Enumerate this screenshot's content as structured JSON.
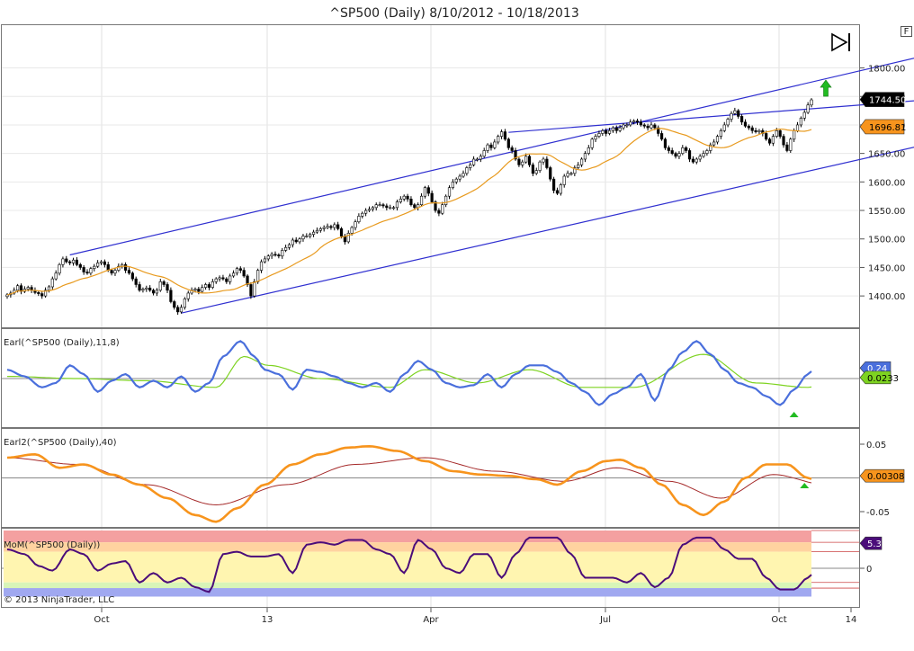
{
  "title": "^SP500 (Daily)  8/10/2012 - 10/18/2013",
  "corner_label": "F",
  "copyright": "© 2013 NinjaTrader, LLC",
  "colors": {
    "up_candle": "#ffffff",
    "down_candle": "#000000",
    "ma": "#e89a1e",
    "channel": "#3030d0",
    "earl_fast": "#4a6fdc",
    "earl_slow": "#7ed321",
    "earl2_fast": "#f7941d",
    "earl2_slow": "#a52a2a",
    "mom": "#4b0d7a",
    "last_price_badge": "#000000",
    "ma_badge": "#f7941d",
    "arrow_up": "#22bb22",
    "zone_red": "#f4a0a0",
    "zone_orange": "#ffd3a0",
    "zone_yellow": "#fff5b0",
    "zone_green": "#d8f5b8",
    "zone_blue": "#a0a8f0"
  },
  "chart_data": [
    {
      "type": "candlestick",
      "name": "price",
      "title": "^SP500 (Daily)  8/10/2012 - 10/18/2013",
      "x_range": [
        "2012-08-10",
        "2013-10-18"
      ],
      "x_ticks": [
        "Oct",
        "13",
        "Apr",
        "Jul",
        "Oct",
        "14"
      ],
      "y_ticks": [
        "1800.00",
        "1750.00",
        "1700.00",
        "1650.00",
        "1600.00",
        "1550.00",
        "1500.00",
        "1450.00",
        "1400.00"
      ],
      "ylim": [
        1345,
        1875
      ],
      "last_price": "1744.50",
      "ma_value": "1696.81",
      "closes": [
        1402,
        1405,
        1410,
        1418,
        1408,
        1412,
        1415,
        1410,
        1406,
        1404,
        1400,
        1410,
        1416,
        1430,
        1440,
        1455,
        1465,
        1460,
        1458,
        1463,
        1455,
        1450,
        1442,
        1440,
        1448,
        1452,
        1458,
        1460,
        1455,
        1445,
        1440,
        1445,
        1452,
        1455,
        1445,
        1440,
        1430,
        1420,
        1410,
        1412,
        1414,
        1410,
        1405,
        1410,
        1425,
        1420,
        1410,
        1390,
        1380,
        1372,
        1380,
        1395,
        1405,
        1410,
        1412,
        1408,
        1415,
        1420,
        1415,
        1425,
        1430,
        1432,
        1430,
        1425,
        1435,
        1440,
        1448,
        1445,
        1435,
        1420,
        1400,
        1425,
        1445,
        1460,
        1465,
        1470,
        1473,
        1472,
        1470,
        1480,
        1485,
        1490,
        1498,
        1495,
        1500,
        1505,
        1505,
        1508,
        1512,
        1515,
        1518,
        1520,
        1522,
        1520,
        1525,
        1518,
        1505,
        1495,
        1510,
        1520,
        1530,
        1540,
        1545,
        1550,
        1552,
        1555,
        1560,
        1560,
        1558,
        1555,
        1555,
        1555,
        1565,
        1570,
        1575,
        1570,
        1560,
        1555,
        1560,
        1575,
        1590,
        1580,
        1565,
        1550,
        1545,
        1560,
        1575,
        1590,
        1600,
        1605,
        1610,
        1615,
        1625,
        1630,
        1640,
        1640,
        1645,
        1655,
        1665,
        1660,
        1670,
        1680,
        1688,
        1675,
        1660,
        1655,
        1640,
        1630,
        1635,
        1645,
        1630,
        1615,
        1620,
        1635,
        1640,
        1625,
        1605,
        1585,
        1580,
        1595,
        1610,
        1615,
        1615,
        1625,
        1630,
        1640,
        1650,
        1660,
        1675,
        1680,
        1685,
        1690,
        1685,
        1690,
        1695,
        1690,
        1695,
        1700,
        1700,
        1705,
        1707,
        1705,
        1700,
        1698,
        1695,
        1700,
        1695,
        1685,
        1675,
        1660,
        1655,
        1650,
        1645,
        1650,
        1660,
        1655,
        1640,
        1635,
        1640,
        1645,
        1650,
        1655,
        1665,
        1670,
        1680,
        1690,
        1700,
        1710,
        1720,
        1725,
        1715,
        1705,
        1698,
        1695,
        1690,
        1688,
        1690,
        1685,
        1675,
        1668,
        1680,
        1690,
        1680,
        1665,
        1655,
        1675,
        1690,
        1700,
        1712,
        1722,
        1735,
        1744
      ]
    },
    {
      "type": "line",
      "name": "earl",
      "label": "Earl(^SP500 (Daily),11,8)",
      "ylim": [
        -1,
        1
      ],
      "fast_value": "0.24",
      "slow_value": "0.0233",
      "fast_keys": [
        [
          0,
          0.2
        ],
        [
          5,
          0.05
        ],
        [
          10,
          -0.2
        ],
        [
          14,
          -0.1
        ],
        [
          18,
          0.3
        ],
        [
          22,
          0.1
        ],
        [
          26,
          -0.3
        ],
        [
          30,
          -0.05
        ],
        [
          34,
          0.1
        ],
        [
          38,
          -0.2
        ],
        [
          42,
          -0.05
        ],
        [
          46,
          -0.2
        ],
        [
          50,
          0.05
        ],
        [
          54,
          -0.3
        ],
        [
          58,
          -0.1
        ],
        [
          62,
          0.5
        ],
        [
          67,
          0.85
        ],
        [
          71,
          0.5
        ],
        [
          74,
          0.2
        ],
        [
          78,
          0.1
        ],
        [
          82,
          -0.25
        ],
        [
          86,
          0.2
        ],
        [
          90,
          0.15
        ],
        [
          94,
          0.05
        ],
        [
          98,
          -0.1
        ],
        [
          102,
          -0.2
        ],
        [
          106,
          -0.1
        ],
        [
          110,
          -0.3
        ],
        [
          114,
          0.1
        ],
        [
          118,
          0.4
        ],
        [
          122,
          0.2
        ],
        [
          126,
          -0.1
        ],
        [
          130,
          -0.2
        ],
        [
          134,
          -0.15
        ],
        [
          138,
          0.1
        ],
        [
          142,
          -0.2
        ],
        [
          146,
          0.1
        ],
        [
          150,
          0.3
        ],
        [
          154,
          0.3
        ],
        [
          158,
          0.15
        ],
        [
          162,
          -0.1
        ],
        [
          166,
          -0.3
        ],
        [
          170,
          -0.6
        ],
        [
          174,
          -0.35
        ],
        [
          178,
          -0.2
        ],
        [
          182,
          0.1
        ],
        [
          186,
          -0.5
        ],
        [
          190,
          0.2
        ],
        [
          194,
          0.6
        ],
        [
          198,
          0.85
        ],
        [
          202,
          0.55
        ],
        [
          206,
          0.2
        ],
        [
          210,
          -0.1
        ],
        [
          214,
          -0.2
        ],
        [
          218,
          -0.4
        ],
        [
          222,
          -0.6
        ],
        [
          226,
          -0.25
        ],
        [
          230,
          0.1
        ],
        [
          234,
          0.5
        ],
        [
          238,
          0.62
        ],
        [
          242,
          0.3
        ],
        [
          246,
          -0.3
        ],
        [
          250,
          -0.5
        ],
        [
          254,
          -0.2
        ],
        [
          258,
          0.48
        ]
      ],
      "slow_keys": [
        [
          0,
          0.05
        ],
        [
          20,
          0.0
        ],
        [
          40,
          -0.05
        ],
        [
          60,
          -0.2
        ],
        [
          68,
          0.5
        ],
        [
          75,
          0.3
        ],
        [
          90,
          0.0
        ],
        [
          110,
          -0.2
        ],
        [
          120,
          0.2
        ],
        [
          135,
          -0.1
        ],
        [
          150,
          0.2
        ],
        [
          165,
          -0.2
        ],
        [
          180,
          -0.2
        ],
        [
          200,
          0.55
        ],
        [
          215,
          -0.1
        ],
        [
          230,
          -0.2
        ],
        [
          245,
          0.4
        ],
        [
          252,
          -0.2
        ],
        [
          258,
          0.0233
        ]
      ]
    },
    {
      "type": "line",
      "name": "earl2",
      "label": "Earl2(^SP500 (Daily),40)",
      "y_ticks": [
        "0.05",
        "-0.05"
      ],
      "ylim": [
        -0.07,
        0.07
      ],
      "fast_value": "0.00308",
      "fast_keys": [
        [
          0,
          0.03
        ],
        [
          8,
          0.035
        ],
        [
          15,
          0.015
        ],
        [
          22,
          0.02
        ],
        [
          30,
          0.005
        ],
        [
          38,
          -0.01
        ],
        [
          46,
          -0.03
        ],
        [
          54,
          -0.055
        ],
        [
          60,
          -0.065
        ],
        [
          66,
          -0.045
        ],
        [
          74,
          -0.01
        ],
        [
          82,
          0.02
        ],
        [
          90,
          0.035
        ],
        [
          98,
          0.045
        ],
        [
          104,
          0.047
        ],
        [
          112,
          0.04
        ],
        [
          120,
          0.025
        ],
        [
          128,
          0.01
        ],
        [
          136,
          0.005
        ],
        [
          144,
          0.003
        ],
        [
          152,
          -0.002
        ],
        [
          158,
          -0.01
        ],
        [
          165,
          0.01
        ],
        [
          172,
          0.025
        ],
        [
          176,
          0.027
        ],
        [
          182,
          0.015
        ],
        [
          188,
          -0.01
        ],
        [
          194,
          -0.04
        ],
        [
          200,
          -0.055
        ],
        [
          206,
          -0.035
        ],
        [
          212,
          0.0
        ],
        [
          218,
          0.02
        ],
        [
          224,
          0.02
        ],
        [
          230,
          0.0
        ],
        [
          236,
          -0.02
        ],
        [
          240,
          -0.04
        ],
        [
          246,
          -0.02
        ],
        [
          250,
          0.01
        ],
        [
          254,
          0.005
        ],
        [
          258,
          0.00308
        ]
      ],
      "slow_keys": [
        [
          0,
          0.03
        ],
        [
          20,
          0.02
        ],
        [
          40,
          -0.01
        ],
        [
          60,
          -0.04
        ],
        [
          80,
          -0.01
        ],
        [
          100,
          0.02
        ],
        [
          120,
          0.03
        ],
        [
          140,
          0.01
        ],
        [
          160,
          -0.005
        ],
        [
          175,
          0.015
        ],
        [
          190,
          -0.005
        ],
        [
          205,
          -0.03
        ],
        [
          220,
          0.005
        ],
        [
          235,
          -0.01
        ],
        [
          250,
          0.0
        ],
        [
          258,
          0.00308
        ]
      ]
    },
    {
      "type": "line",
      "name": "mom",
      "label": "MoM(^SP500 (Daily))",
      "y_ticks": [
        "0"
      ],
      "ylim": [
        -8,
        8
      ],
      "last_value": "5.3",
      "keys": [
        [
          0,
          4
        ],
        [
          5,
          3
        ],
        [
          9,
          0.5
        ],
        [
          13,
          -0.5
        ],
        [
          18,
          4
        ],
        [
          22,
          3
        ],
        [
          26,
          -0.5
        ],
        [
          30,
          1
        ],
        [
          34,
          1.5
        ],
        [
          38,
          -3
        ],
        [
          42,
          -1
        ],
        [
          46,
          -3
        ],
        [
          50,
          -2
        ],
        [
          54,
          -4
        ],
        [
          58,
          -5
        ],
        [
          62,
          3
        ],
        [
          66,
          3.5
        ],
        [
          70,
          2.5
        ],
        [
          74,
          2.5
        ],
        [
          78,
          3
        ],
        [
          82,
          -1
        ],
        [
          86,
          5
        ],
        [
          90,
          5.5
        ],
        [
          94,
          5
        ],
        [
          98,
          6
        ],
        [
          102,
          6
        ],
        [
          106,
          4
        ],
        [
          110,
          3
        ],
        [
          114,
          -1
        ],
        [
          118,
          6
        ],
        [
          122,
          4
        ],
        [
          126,
          0
        ],
        [
          130,
          -1
        ],
        [
          134,
          3
        ],
        [
          138,
          3
        ],
        [
          142,
          -2
        ],
        [
          146,
          3
        ],
        [
          150,
          6.5
        ],
        [
          154,
          6.5
        ],
        [
          158,
          6.5
        ],
        [
          162,
          3
        ],
        [
          166,
          -2
        ],
        [
          170,
          -2
        ],
        [
          174,
          -2
        ],
        [
          178,
          -3
        ],
        [
          182,
          -1
        ],
        [
          186,
          -4
        ],
        [
          190,
          -2
        ],
        [
          194,
          5
        ],
        [
          198,
          6.5
        ],
        [
          202,
          6.5
        ],
        [
          206,
          4
        ],
        [
          210,
          2
        ],
        [
          214,
          2
        ],
        [
          218,
          -2
        ],
        [
          222,
          -4.5
        ],
        [
          226,
          -4.5
        ],
        [
          230,
          -2
        ],
        [
          234,
          2
        ],
        [
          238,
          6
        ],
        [
          242,
          6.5
        ],
        [
          246,
          2
        ],
        [
          250,
          -1
        ],
        [
          254,
          -2.5
        ],
        [
          258,
          5.3
        ]
      ],
      "zones": [
        {
          "name": "red",
          "from": 5.5,
          "to": 8
        },
        {
          "name": "orange",
          "from": 3.5,
          "to": 5.5
        },
        {
          "name": "yellow",
          "from": -3,
          "to": 3.5
        },
        {
          "name": "green",
          "from": -4.2,
          "to": -3
        },
        {
          "name": "blue",
          "from": -6,
          "to": -4.2
        }
      ]
    }
  ]
}
